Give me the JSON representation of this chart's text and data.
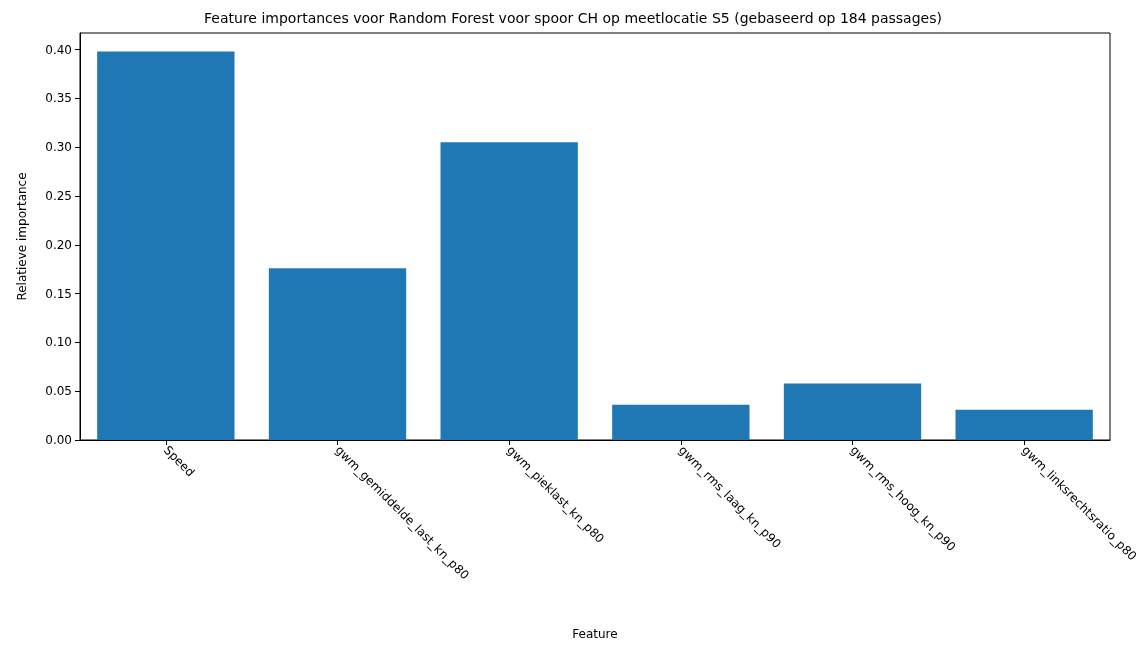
{
  "chart_data": {
    "type": "bar",
    "title": "Feature importances voor Random Forest voor spoor CH op meetlocatie S5 (gebaseerd op 184 passages)",
    "xlabel": "Feature",
    "ylabel": "Relatieve importance",
    "categories": [
      "Speed",
      "gwm_gemiddelde_last_kn_p80",
      "gwm_pieklast_kn_p80",
      "gwm_rms_laag_kn_p90",
      "gwm_rms_hoog_kn_p90",
      "gwm_linksrechtsratio_p80"
    ],
    "values": [
      0.398,
      0.176,
      0.305,
      0.036,
      0.058,
      0.031
    ],
    "color": "#1f77b4",
    "ylim": [
      0,
      0.417
    ],
    "yticks": [
      {
        "value": 0,
        "label": "0.00"
      },
      {
        "value": 0.05,
        "label": "0.05"
      },
      {
        "value": 0.1,
        "label": "0.10"
      },
      {
        "value": 0.15,
        "label": "0.15"
      },
      {
        "value": 0.2,
        "label": "0.20"
      },
      {
        "value": 0.25,
        "label": "0.25"
      },
      {
        "value": 0.3,
        "label": "0.30"
      },
      {
        "value": 0.35,
        "label": "0.35"
      },
      {
        "value": 0.4,
        "label": "0.40"
      }
    ],
    "grid": false
  }
}
